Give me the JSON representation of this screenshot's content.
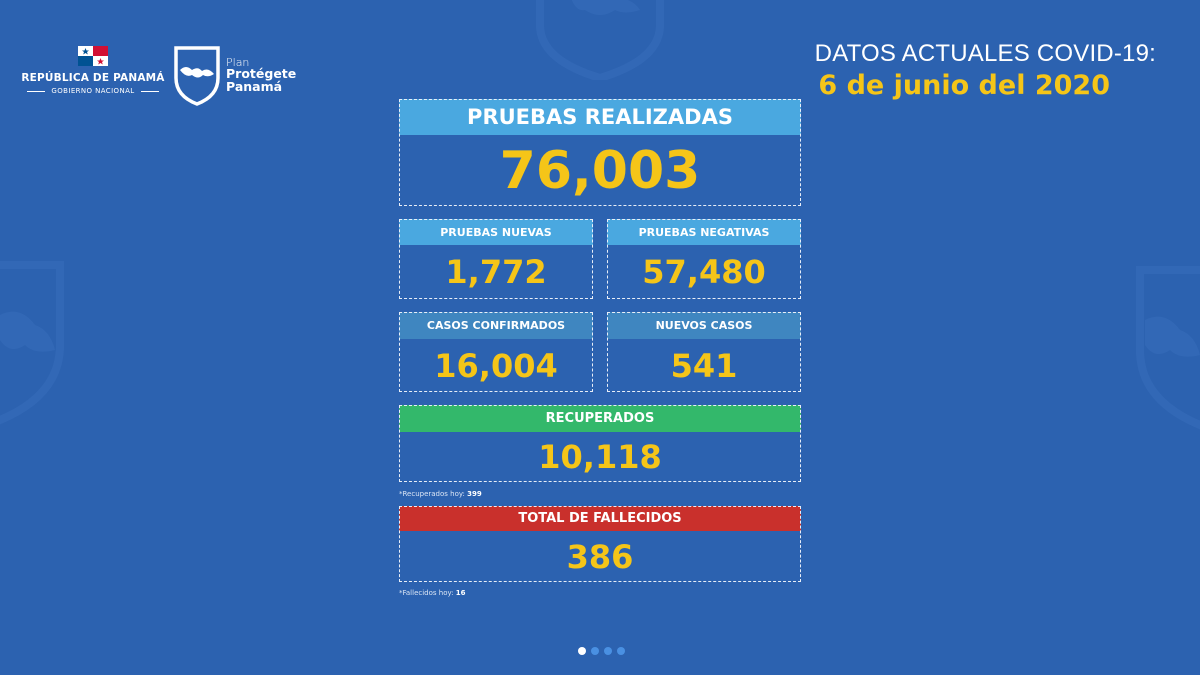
{
  "government": {
    "name": "REPÚBLICA DE PANAMÁ",
    "subtitle": "GOBIERNO NACIONAL"
  },
  "plan": {
    "line1": "Plan",
    "line2": "Protégete",
    "line3": "Panamá"
  },
  "header": {
    "title": "DATOS ACTUALES COVID-19:",
    "date": "6 de junio del 2020"
  },
  "stats": {
    "pruebas_realizadas": {
      "label": "PRUEBAS REALIZADAS",
      "value": "76,003"
    },
    "pruebas_nuevas": {
      "label": "PRUEBAS NUEVAS",
      "value": "1,772"
    },
    "pruebas_negativas": {
      "label": "PRUEBAS NEGATIVAS",
      "value": "57,480"
    },
    "casos_confirmados": {
      "label": "CASOS CONFIRMADOS",
      "value": "16,004"
    },
    "nuevos_casos": {
      "label": "NUEVOS CASOS",
      "value": "541"
    },
    "recuperados": {
      "label": "RECUPERADOS",
      "value": "10,118",
      "note_label": "*Recuperados hoy:",
      "note_value": "399"
    },
    "fallecidos": {
      "label": "TOTAL DE FALLECIDOS",
      "value": "386",
      "note_label": "*Fallecidos hoy:",
      "note_value": "16"
    }
  },
  "colors": {
    "background": "#2c62b0",
    "header_light_blue": "#4aa8e0",
    "header_steel_blue": "#3f86c0",
    "header_green": "#33b86b",
    "header_red": "#c9302c",
    "value_yellow": "#f5c518"
  },
  "pagination": {
    "total": 4,
    "active": 1
  }
}
